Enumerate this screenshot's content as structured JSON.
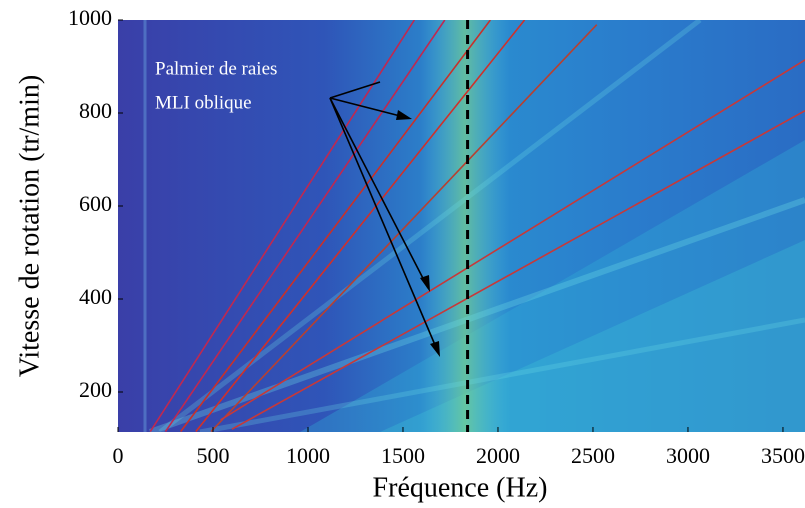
{
  "chart_data": {
    "type": "spectrogram",
    "x_label": "Fréquence (Hz)",
    "y_label": "Vitesse de rotation (tr/min)",
    "xlim": [
      0,
      3616
    ],
    "ylim": [
      114,
      1000
    ],
    "xticks": [
      0,
      500,
      1000,
      1500,
      2000,
      2500,
      3000,
      3500
    ],
    "yticks": [
      200,
      400,
      600,
      800,
      1000
    ],
    "annotation": [
      "Palmier de raies",
      "MLI oblique"
    ],
    "vline": {
      "x": 1840,
      "color": "#000000",
      "style": "dashed"
    },
    "series": [
      {
        "color": "#c02850",
        "x": [
          170,
          1560
        ],
        "values": [
          115,
          1000
        ]
      },
      {
        "color": "#c02850",
        "x": [
          250,
          1720
        ],
        "values": [
          115,
          1000
        ]
      },
      {
        "color": "#c8302a",
        "x": [
          330,
          1960
        ],
        "values": [
          115,
          1000
        ]
      },
      {
        "color": "#d0302a",
        "x": [
          410,
          2140
        ],
        "values": [
          115,
          1000
        ]
      },
      {
        "color": "#b84030",
        "x": [
          490,
          2520
        ],
        "values": [
          115,
          990
        ]
      },
      {
        "color": "#c83838",
        "x": [
          540,
          3616
        ],
        "values": [
          140,
          914
        ]
      },
      {
        "color": "#c83838",
        "x": [
          600,
          3616
        ],
        "values": [
          120,
          805
        ]
      }
    ]
  }
}
